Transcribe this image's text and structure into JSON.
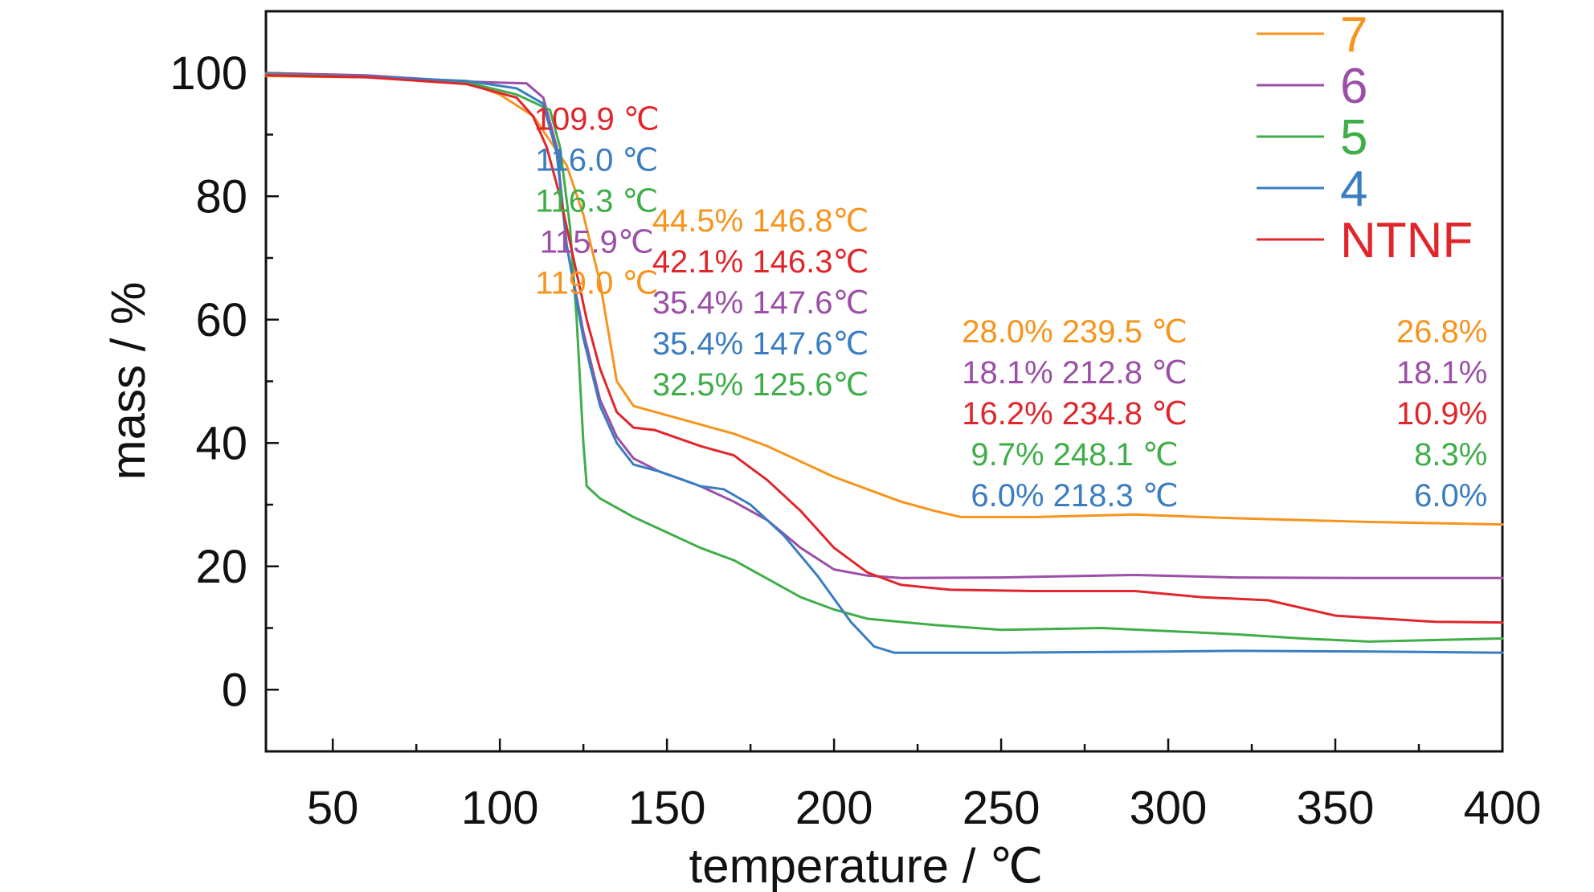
{
  "chart_data": {
    "type": "line",
    "xlabel": "temperature / ℃",
    "ylabel": "mass / %",
    "xlim": [
      30,
      400
    ],
    "ylim": [
      -10,
      110
    ],
    "xticks": [
      50,
      100,
      150,
      200,
      250,
      300,
      350,
      400
    ],
    "yticks": [
      0,
      20,
      40,
      60,
      80,
      100
    ],
    "grid": false,
    "legend_position": "top-right",
    "series": [
      {
        "name": "7",
        "color": "#f7941d",
        "points": [
          [
            30,
            99.5
          ],
          [
            60,
            99.3
          ],
          [
            90,
            98.5
          ],
          [
            100,
            96.5
          ],
          [
            110,
            93
          ],
          [
            115,
            89
          ],
          [
            120,
            85
          ],
          [
            125,
            77
          ],
          [
            130,
            66
          ],
          [
            135,
            50
          ],
          [
            140,
            46
          ],
          [
            150,
            44.5
          ],
          [
            160,
            43
          ],
          [
            170,
            41.5
          ],
          [
            180,
            39.5
          ],
          [
            190,
            37
          ],
          [
            200,
            34.5
          ],
          [
            210,
            32.5
          ],
          [
            220,
            30.5
          ],
          [
            230,
            29
          ],
          [
            238,
            28
          ],
          [
            260,
            28
          ],
          [
            290,
            28.4
          ],
          [
            320,
            27.8
          ],
          [
            360,
            27.2
          ],
          [
            400,
            26.8
          ]
        ]
      },
      {
        "name": "6",
        "color": "#9b4fa6",
        "points": [
          [
            30,
            100
          ],
          [
            60,
            99.6
          ],
          [
            90,
            98.6
          ],
          [
            108,
            98.3
          ],
          [
            113,
            96
          ],
          [
            117,
            88
          ],
          [
            120,
            72
          ],
          [
            125,
            58
          ],
          [
            130,
            47
          ],
          [
            135,
            41
          ],
          [
            140,
            37.5
          ],
          [
            147.6,
            35.4
          ],
          [
            160,
            33
          ],
          [
            170,
            30.5
          ],
          [
            180,
            27.5
          ],
          [
            190,
            23
          ],
          [
            200,
            19.5
          ],
          [
            210,
            18.5
          ],
          [
            220,
            18.1
          ],
          [
            250,
            18.2
          ],
          [
            290,
            18.6
          ],
          [
            320,
            18.2
          ],
          [
            360,
            18.1
          ],
          [
            400,
            18.1
          ]
        ]
      },
      {
        "name": "5",
        "color": "#3fae49",
        "points": [
          [
            30,
            99.8
          ],
          [
            60,
            99.4
          ],
          [
            90,
            98.5
          ],
          [
            105,
            96.5
          ],
          [
            115,
            94
          ],
          [
            118,
            88
          ],
          [
            121,
            75
          ],
          [
            123,
            60
          ],
          [
            125,
            40
          ],
          [
            126,
            33
          ],
          [
            130,
            31
          ],
          [
            140,
            28
          ],
          [
            150,
            25.5
          ],
          [
            160,
            23
          ],
          [
            170,
            21
          ],
          [
            180,
            18
          ],
          [
            190,
            15
          ],
          [
            200,
            13
          ],
          [
            210,
            11.5
          ],
          [
            230,
            10.5
          ],
          [
            250,
            9.7
          ],
          [
            280,
            10
          ],
          [
            320,
            9
          ],
          [
            340,
            8.3
          ],
          [
            360,
            7.8
          ],
          [
            400,
            8.3
          ]
        ]
      },
      {
        "name": "4",
        "color": "#3a7dc1",
        "points": [
          [
            30,
            99.7
          ],
          [
            60,
            99.4
          ],
          [
            90,
            98.7
          ],
          [
            105,
            97.5
          ],
          [
            113,
            95
          ],
          [
            117,
            87
          ],
          [
            120,
            72
          ],
          [
            125,
            57
          ],
          [
            130,
            46
          ],
          [
            135,
            40
          ],
          [
            140,
            36.5
          ],
          [
            147.6,
            35.4
          ],
          [
            155,
            34
          ],
          [
            160,
            33
          ],
          [
            167,
            32.5
          ],
          [
            175,
            30
          ],
          [
            185,
            25
          ],
          [
            195,
            18.5
          ],
          [
            205,
            11
          ],
          [
            212,
            7
          ],
          [
            218,
            6
          ],
          [
            250,
            6
          ],
          [
            300,
            6.2
          ],
          [
            320,
            6.3
          ],
          [
            360,
            6.2
          ],
          [
            400,
            6.0
          ]
        ]
      },
      {
        "name": "NTNF",
        "color": "#e0262b",
        "points": [
          [
            30,
            99.6
          ],
          [
            60,
            99.3
          ],
          [
            90,
            98.2
          ],
          [
            105,
            96
          ],
          [
            109.9,
            93
          ],
          [
            114,
            88
          ],
          [
            118,
            80
          ],
          [
            122,
            70
          ],
          [
            126,
            60
          ],
          [
            130,
            52
          ],
          [
            135,
            45
          ],
          [
            140,
            42.5
          ],
          [
            146.3,
            42.1
          ],
          [
            160,
            39.5
          ],
          [
            170,
            38
          ],
          [
            180,
            34
          ],
          [
            190,
            29
          ],
          [
            200,
            23
          ],
          [
            210,
            19
          ],
          [
            220,
            17
          ],
          [
            234.8,
            16.2
          ],
          [
            260,
            16
          ],
          [
            290,
            16
          ],
          [
            310,
            15
          ],
          [
            330,
            14.5
          ],
          [
            350,
            12
          ],
          [
            380,
            11
          ],
          [
            400,
            10.9
          ]
        ]
      }
    ],
    "annotation_columns": [
      {
        "anchor_x": 129,
        "anchor_y": 90.8,
        "align": "middle",
        "items": [
          {
            "text": "109.9 ℃",
            "color": "#e0262b"
          },
          {
            "text": "116.0 ℃",
            "color": "#3a7dc1"
          },
          {
            "text": "116.3 ℃",
            "color": "#3fae49"
          },
          {
            "text": "115.9℃",
            "color": "#9b4fa6"
          },
          {
            "text": "119.0 ℃",
            "color": "#f7941d"
          }
        ]
      },
      {
        "anchor_x": 178,
        "anchor_y": 74.3,
        "align": "middle",
        "items": [
          {
            "text": "44.5% 146.8℃",
            "color": "#f7941d"
          },
          {
            "text": "42.1% 146.3℃",
            "color": "#e0262b"
          },
          {
            "text": "35.4% 147.6℃",
            "color": "#9b4fa6"
          },
          {
            "text": "35.4% 147.6℃",
            "color": "#3a7dc1"
          },
          {
            "text": "32.5% 125.6℃",
            "color": "#3fae49"
          }
        ]
      },
      {
        "anchor_x": 272,
        "anchor_y": 56.3,
        "align": "middle",
        "items": [
          {
            "text": "28.0% 239.5 ℃",
            "color": "#f7941d"
          },
          {
            "text": "18.1% 212.8 ℃",
            "color": "#9b4fa6"
          },
          {
            "text": "16.2% 234.8 ℃",
            "color": "#e0262b"
          },
          {
            "text": "9.7% 248.1 ℃",
            "color": "#3fae49"
          },
          {
            "text": "6.0% 218.3 ℃",
            "color": "#3a7dc1"
          }
        ]
      },
      {
        "anchor_x": 395.5,
        "anchor_y": 56.3,
        "align": "end",
        "items": [
          {
            "text": "26.8%",
            "color": "#f7941d"
          },
          {
            "text": "18.1%",
            "color": "#9b4fa6"
          },
          {
            "text": "10.9%",
            "color": "#e0262b"
          },
          {
            "text": "8.3%",
            "color": "#3fae49"
          },
          {
            "text": "6.0%",
            "color": "#3a7dc1"
          }
        ]
      }
    ]
  }
}
